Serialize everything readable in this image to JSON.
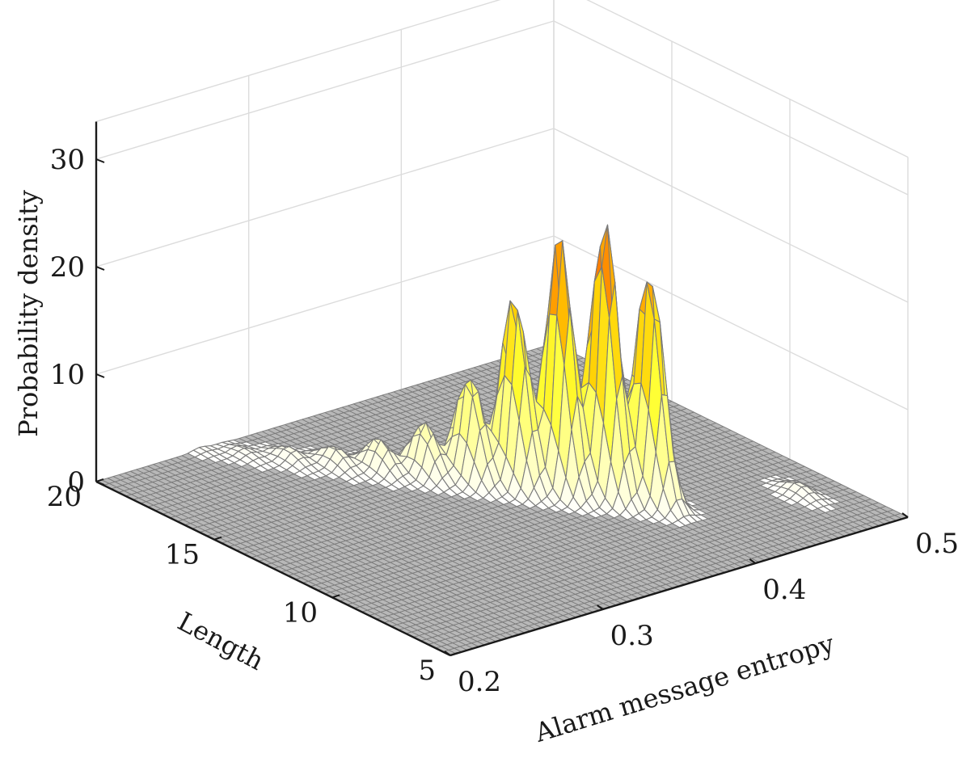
{
  "chart_data": {
    "type": "surface",
    "xlabel": "Alarm message entropy",
    "ylabel": "Length",
    "zlabel": "Probability density",
    "xlim": [
      0.2,
      0.5
    ],
    "ylim": [
      5,
      20
    ],
    "zlim": [
      0,
      30
    ],
    "x_ticks": [
      "0.2",
      "0.3",
      "0.4",
      "0.5"
    ],
    "y_ticks": [
      "5",
      "10",
      "15",
      "20"
    ],
    "z_ticks": [
      "0",
      "10",
      "20",
      "30"
    ],
    "grid": true,
    "colormap": [
      "#ffffff",
      "#ffff99",
      "#ffff33",
      "#ffcc00",
      "#ff8800",
      "#ee4411"
    ],
    "mesh_color": "#7a7a7a",
    "peaks": [
      {
        "entropy": 0.268,
        "length": 20,
        "density": 0.3
      },
      {
        "entropy": 0.282,
        "length": 19,
        "density": 0.6
      },
      {
        "entropy": 0.296,
        "length": 18,
        "density": 1.2
      },
      {
        "entropy": 0.31,
        "length": 17,
        "density": 1.8
      },
      {
        "entropy": 0.324,
        "length": 16,
        "density": 3.0
      },
      {
        "entropy": 0.338,
        "length": 15,
        "density": 5.0
      },
      {
        "entropy": 0.352,
        "length": 14,
        "density": 10.0
      },
      {
        "entropy": 0.366,
        "length": 13,
        "density": 18.0
      },
      {
        "entropy": 0.38,
        "length": 12,
        "density": 24.0
      },
      {
        "entropy": 0.394,
        "length": 11,
        "density": 26.0
      },
      {
        "entropy": 0.408,
        "length": 10,
        "density": 22.0
      },
      {
        "entropy": 0.475,
        "length": 8,
        "density": 1.0
      }
    ]
  }
}
